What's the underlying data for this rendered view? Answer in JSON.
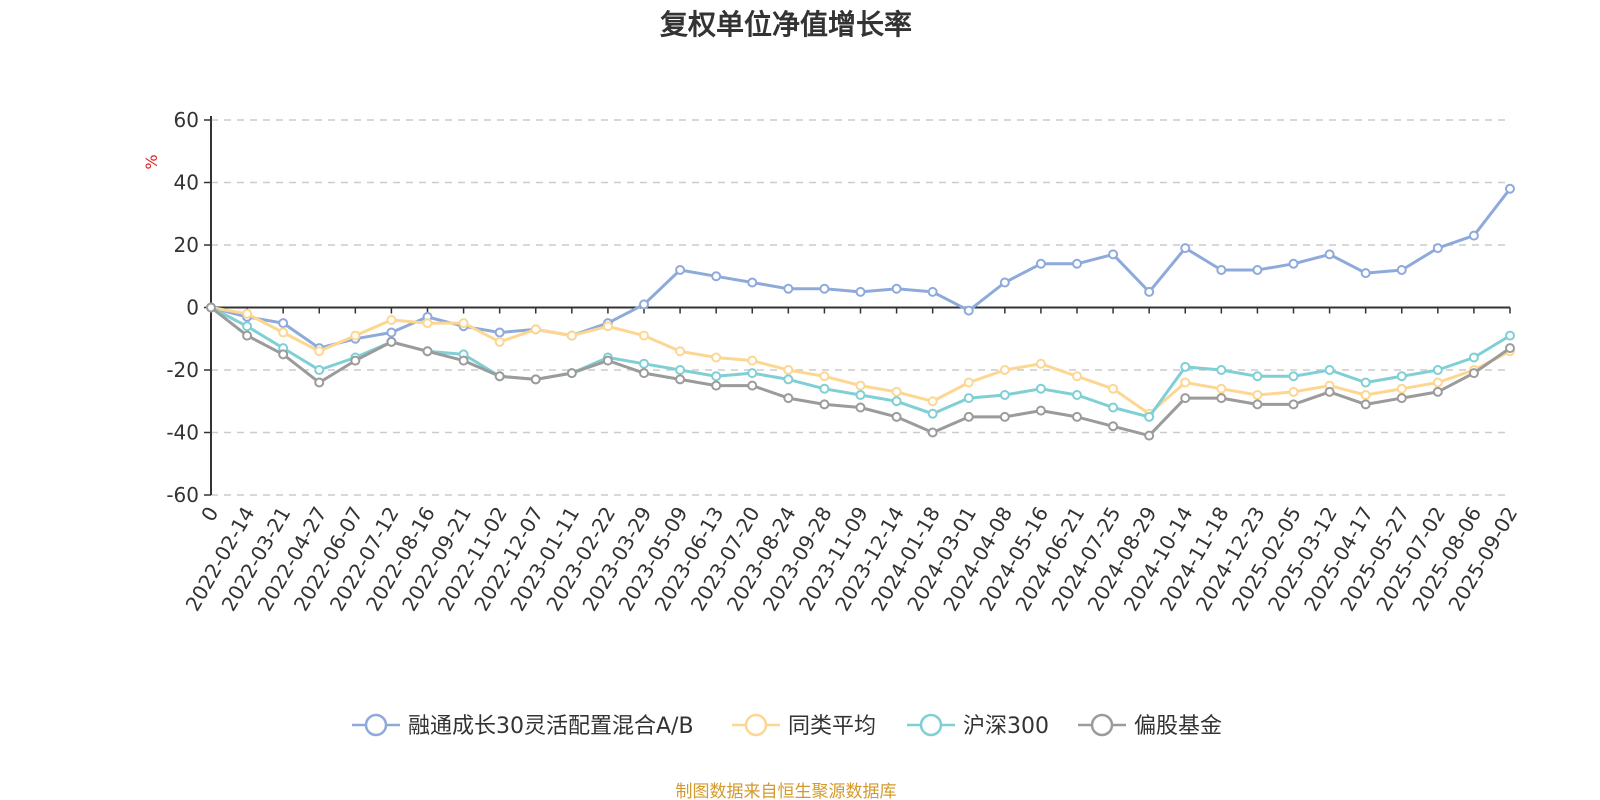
{
  "chart_data": {
    "type": "line",
    "title": "复权单位净值增长率",
    "y_unit": "%",
    "ylim": [
      -60,
      60
    ],
    "y_ticks": [
      60,
      40,
      20,
      0,
      -20,
      -40,
      -60
    ],
    "grid": true,
    "legend_position": "bottom",
    "x_start_label": "0",
    "x_tick_labels": [
      "2022-02-14",
      "2022-03-21",
      "2022-04-27",
      "2022-06-07",
      "2022-07-12",
      "2022-08-16",
      "2022-09-21",
      "2022-11-02",
      "2022-12-07",
      "2023-01-11",
      "2023-02-22",
      "2023-03-29",
      "2023-05-09",
      "2023-06-13",
      "2023-07-20",
      "2023-08-24",
      "2023-09-28",
      "2023-11-09",
      "2023-12-14",
      "2024-01-18",
      "2024-03-01",
      "2024-04-08",
      "2024-05-16",
      "2024-06-21",
      "2024-07-25",
      "2024-08-29",
      "2024-10-14",
      "2024-11-18",
      "2024-12-23",
      "2025-02-05",
      "2025-03-12",
      "2025-04-17",
      "2025-05-27",
      "2025-07-02",
      "2025-08-06",
      "2025-09-02"
    ],
    "x": [
      "start",
      "2022-02-14",
      "2022-03-21",
      "2022-04-27",
      "2022-06-07",
      "2022-07-12",
      "2022-08-16",
      "2022-09-21",
      "2022-11-02",
      "2022-12-07",
      "2023-01-11",
      "2023-02-22",
      "2023-03-29",
      "2023-05-09",
      "2023-06-13",
      "2023-07-20",
      "2023-08-24",
      "2023-09-28",
      "2023-11-09",
      "2023-12-14",
      "2024-01-18",
      "2024-03-01",
      "2024-04-08",
      "2024-05-16",
      "2024-06-21",
      "2024-07-25",
      "2024-08-29",
      "2024-10-14",
      "2024-11-18",
      "2024-12-23",
      "2025-02-05",
      "2025-03-12",
      "2025-04-17",
      "2025-05-27",
      "2025-07-02",
      "2025-08-06",
      "2025-09-02"
    ],
    "series": [
      {
        "name": "融通成长30灵活配置混合A/B",
        "color": "#8eaadb",
        "values": [
          0,
          -3,
          -5,
          -13,
          -10,
          -8,
          -3,
          -6,
          -8,
          -7,
          -9,
          -5,
          1,
          12,
          10,
          8,
          6,
          6,
          5,
          6,
          5,
          -1,
          8,
          14,
          14,
          17,
          5,
          19,
          12,
          12,
          14,
          17,
          11,
          12,
          19,
          23,
          38
        ]
      },
      {
        "name": "同类平均",
        "color": "#fdd792",
        "values": [
          0,
          -2,
          -8,
          -14,
          -9,
          -4,
          -5,
          -5,
          -11,
          -7,
          -9,
          -6,
          -9,
          -14,
          -16,
          -17,
          -20,
          -22,
          -25,
          -27,
          -30,
          -24,
          -20,
          -18,
          -22,
          -26,
          -34,
          -24,
          -26,
          -28,
          -27,
          -25,
          -28,
          -26,
          -24,
          -20,
          -14
        ]
      },
      {
        "name": "沪深300",
        "color": "#7fcfd4",
        "values": [
          0,
          -6,
          -13,
          -20,
          -16,
          -11,
          -14,
          -15,
          -22,
          -23,
          -21,
          -16,
          -18,
          -20,
          -22,
          -21,
          -23,
          -26,
          -28,
          -30,
          -34,
          -29,
          -28,
          -26,
          -28,
          -32,
          -35,
          -19,
          -20,
          -22,
          -22,
          -20,
          -24,
          -22,
          -20,
          -16,
          -9
        ]
      },
      {
        "name": "偏股基金",
        "color": "#9b9b9b",
        "values": [
          0,
          -9,
          -15,
          -24,
          -17,
          -11,
          -14,
          -17,
          -22,
          -23,
          -21,
          -17,
          -21,
          -23,
          -25,
          -25,
          -29,
          -31,
          -32,
          -35,
          -40,
          -35,
          -35,
          -33,
          -35,
          -38,
          -41,
          -29,
          -29,
          -31,
          -31,
          -27,
          -31,
          -29,
          -27,
          -21,
          -13
        ]
      }
    ]
  },
  "source_text": "制图数据来自恒生聚源数据库"
}
